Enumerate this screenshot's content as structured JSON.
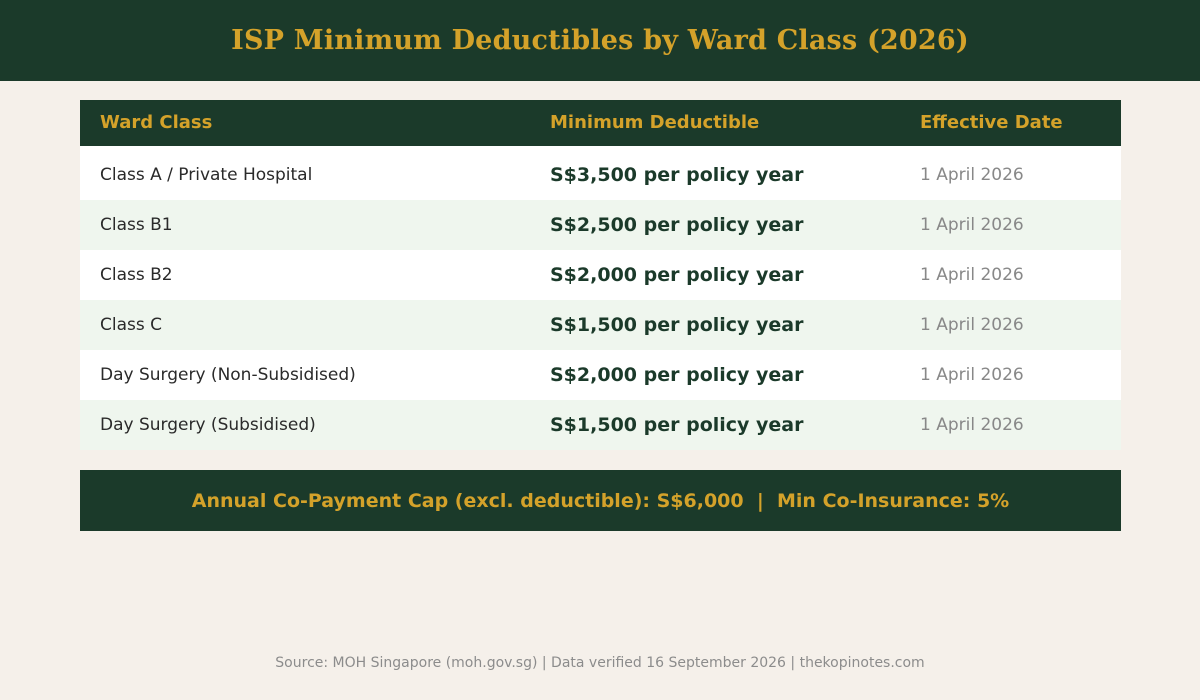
{
  "header": {
    "title": "ISP Minimum Deductibles by Ward Class (2026)"
  },
  "table": {
    "columns": [
      "Ward Class",
      "Minimum Deductible",
      "Effective Date"
    ],
    "rows": [
      {
        "ward_class": "Class A / Private Hospital",
        "deductible": "S$3,500 per policy year",
        "effective_date": "1 April 2026"
      },
      {
        "ward_class": "Class B1",
        "deductible": "S$2,500 per policy year",
        "effective_date": "1 April 2026"
      },
      {
        "ward_class": "Class B2",
        "deductible": "S$2,000 per policy year",
        "effective_date": "1 April 2026"
      },
      {
        "ward_class": "Class C",
        "deductible": "S$1,500 per policy year",
        "effective_date": "1 April 2026"
      },
      {
        "ward_class": "Day Surgery (Non-Subsidised)",
        "deductible": "S$2,000 per policy year",
        "effective_date": "1 April 2026"
      },
      {
        "ward_class": "Day Surgery (Subsidised)",
        "deductible": "S$1,500 per policy year",
        "effective_date": "1 April 2026"
      }
    ]
  },
  "banner": {
    "text": "Annual Co-Payment Cap (excl. deductible): S$6,000  |  Min Co-Insurance: 5%"
  },
  "footer": {
    "source": "Source: MOH Singapore (moh.gov.sg) | Data verified 16 September 2026 | thekopinotes.com"
  },
  "colors": {
    "dark_green": "#1b3a2a",
    "gold": "#d4a22a",
    "background": "#f5f0ea",
    "row_alt": "#eff6ee"
  },
  "chart_data": {
    "type": "table",
    "title": "ISP Minimum Deductibles by Ward Class (2026)",
    "columns": [
      "Ward Class",
      "Minimum Deductible",
      "Effective Date"
    ],
    "rows": [
      [
        "Class A / Private Hospital",
        "S$3,500 per policy year",
        "1 April 2026"
      ],
      [
        "Class B1",
        "S$2,500 per policy year",
        "1 April 2026"
      ],
      [
        "Class B2",
        "S$2,000 per policy year",
        "1 April 2026"
      ],
      [
        "Class C",
        "S$1,500 per policy year",
        "1 April 2026"
      ],
      [
        "Day Surgery (Non-Subsidised)",
        "S$2,000 per policy year",
        "1 April 2026"
      ],
      [
        "Day Surgery (Subsidised)",
        "S$1,500 per policy year",
        "1 April 2026"
      ]
    ]
  }
}
